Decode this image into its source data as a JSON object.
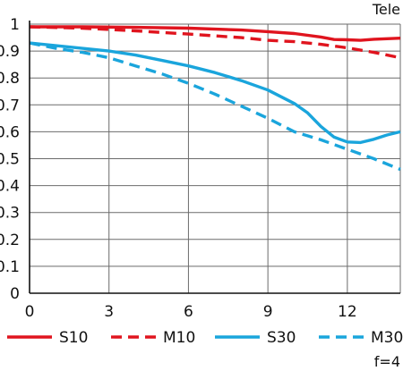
{
  "chart_data": {
    "type": "line",
    "title": "Tele",
    "footnote": "f=4",
    "xlim": [
      0,
      14
    ],
    "ylim": [
      0,
      1
    ],
    "x_ticks": [
      "0",
      "3",
      "6",
      "9",
      "12"
    ],
    "y_ticks": [
      "0",
      "0.1",
      "0.2",
      "0.3",
      "0.4",
      "0.5",
      "0.6",
      "0.7",
      "0.8",
      "0.9",
      "1"
    ],
    "grid": true,
    "legend_position": "bottom",
    "series": [
      {
        "name": "S10",
        "color": "#e0141e",
        "style": "solid",
        "points": [
          [
            0,
            0.99
          ],
          [
            2,
            0.99
          ],
          [
            4,
            0.988
          ],
          [
            6,
            0.985
          ],
          [
            8,
            0.978
          ],
          [
            9,
            0.972
          ],
          [
            10,
            0.965
          ],
          [
            11,
            0.952
          ],
          [
            11.5,
            0.943
          ],
          [
            12,
            0.942
          ],
          [
            12.5,
            0.94
          ],
          [
            13,
            0.944
          ],
          [
            14,
            0.948
          ]
        ]
      },
      {
        "name": "M10",
        "color": "#e0141e",
        "style": "dashed",
        "points": [
          [
            0,
            0.99
          ],
          [
            2,
            0.985
          ],
          [
            4,
            0.975
          ],
          [
            6,
            0.963
          ],
          [
            8,
            0.95
          ],
          [
            9,
            0.94
          ],
          [
            10,
            0.935
          ],
          [
            11,
            0.925
          ],
          [
            12,
            0.912
          ],
          [
            13,
            0.895
          ],
          [
            14,
            0.875
          ]
        ]
      },
      {
        "name": "S30",
        "color": "#1aa5dc",
        "style": "solid",
        "points": [
          [
            0,
            0.93
          ],
          [
            1,
            0.92
          ],
          [
            2,
            0.91
          ],
          [
            3,
            0.9
          ],
          [
            4,
            0.885
          ],
          [
            5,
            0.865
          ],
          [
            6,
            0.845
          ],
          [
            7,
            0.82
          ],
          [
            8,
            0.79
          ],
          [
            9,
            0.755
          ],
          [
            10,
            0.705
          ],
          [
            10.5,
            0.67
          ],
          [
            11,
            0.62
          ],
          [
            11.5,
            0.58
          ],
          [
            12,
            0.562
          ],
          [
            12.5,
            0.56
          ],
          [
            13,
            0.572
          ],
          [
            13.5,
            0.588
          ],
          [
            14,
            0.6
          ]
        ]
      },
      {
        "name": "M30",
        "color": "#1aa5dc",
        "style": "dashed",
        "points": [
          [
            0,
            0.93
          ],
          [
            1,
            0.91
          ],
          [
            2,
            0.895
          ],
          [
            3,
            0.875
          ],
          [
            4,
            0.845
          ],
          [
            5,
            0.815
          ],
          [
            6,
            0.78
          ],
          [
            7,
            0.74
          ],
          [
            8,
            0.695
          ],
          [
            9,
            0.65
          ],
          [
            10,
            0.6
          ],
          [
            11,
            0.57
          ],
          [
            12,
            0.535
          ],
          [
            13,
            0.5
          ],
          [
            14,
            0.46
          ]
        ]
      }
    ]
  }
}
